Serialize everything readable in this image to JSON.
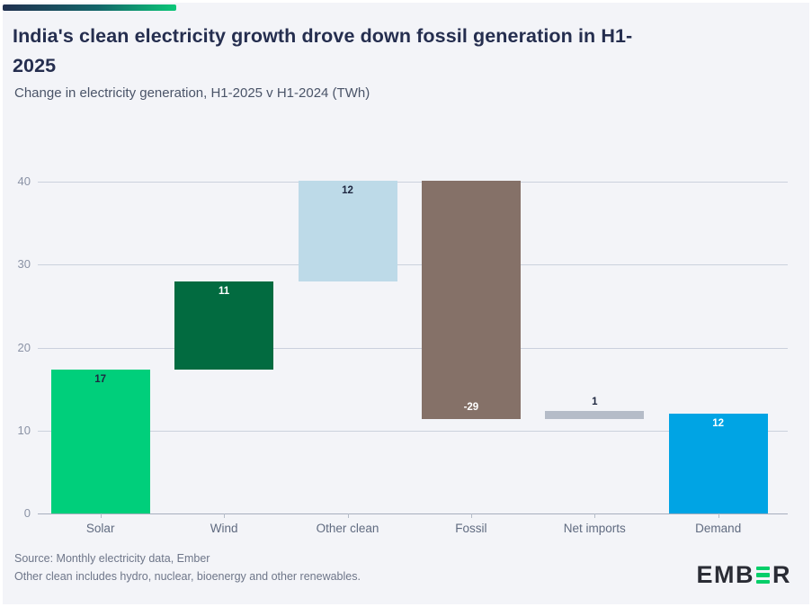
{
  "header": {
    "title_lines": [
      "India's clean electricity growth drove down fossil generation in H1-",
      "2025"
    ],
    "subtitle": "Change in electricity generation, H1-2025 v H1-2024 (TWh)"
  },
  "chart_data": {
    "type": "bar",
    "subtype": "waterfall",
    "title": "India's clean electricity growth drove down fossil generation in H1-2025",
    "subtitle": "Change in electricity generation, H1-2025 v H1-2024 (TWh)",
    "categories": [
      "Solar",
      "Wind",
      "Other clean",
      "Fossil",
      "Net imports",
      "Demand"
    ],
    "values": [
      17,
      11,
      12,
      -29,
      1,
      12
    ],
    "unit": "TWh",
    "ylim": [
      0,
      40
    ],
    "y_ticks": [
      0,
      10,
      20,
      30,
      40
    ],
    "grid": true,
    "xlabel": "",
    "ylabel": "",
    "bars": [
      {
        "category": "Solar",
        "label": "17",
        "start": 0,
        "end": 17.3,
        "color": "#00cf7b",
        "label_color": "#1e2740",
        "label_pos": "inside-top"
      },
      {
        "category": "Wind",
        "label": "11",
        "start": 17.3,
        "end": 28.0,
        "color": "#026b40",
        "label_color": "#ffffff",
        "label_pos": "inside-top"
      },
      {
        "category": "Other clean",
        "label": "12",
        "start": 28.0,
        "end": 40.1,
        "color": "#bddae8",
        "label_color": "#1e2740",
        "label_pos": "inside-top"
      },
      {
        "category": "Fossil",
        "label": "-29",
        "start": 40.1,
        "end": 11.4,
        "color": "#857168",
        "label_color": "#ffffff",
        "label_pos": "inside-bottom"
      },
      {
        "category": "Net imports",
        "label": "1",
        "start": 11.4,
        "end": 12.4,
        "color": "#b5bcc8",
        "label_color": "#1e2740",
        "label_pos": "above"
      },
      {
        "category": "Demand",
        "label": "12",
        "start": 0,
        "end": 12.05,
        "color": "#00a4e4",
        "label_color": "#ffffff",
        "label_pos": "inside-top"
      }
    ]
  },
  "footer": {
    "source_line1": "Source: Monthly electricity data, Ember",
    "source_line2": "Other clean includes hydro, nuclear, bioenergy and other renewables.",
    "logo": {
      "prefix": "EMB",
      "suffix": "R"
    }
  },
  "colors": {
    "background": "#f3f4f8",
    "gridline": "#cbd1dd",
    "zero_line": "#a8afbe",
    "tick": "#b5bcc8",
    "accent_gradient_start": "#20304f",
    "accent_gradient_end": "#0bc778",
    "logo_green": "#04ce69"
  }
}
